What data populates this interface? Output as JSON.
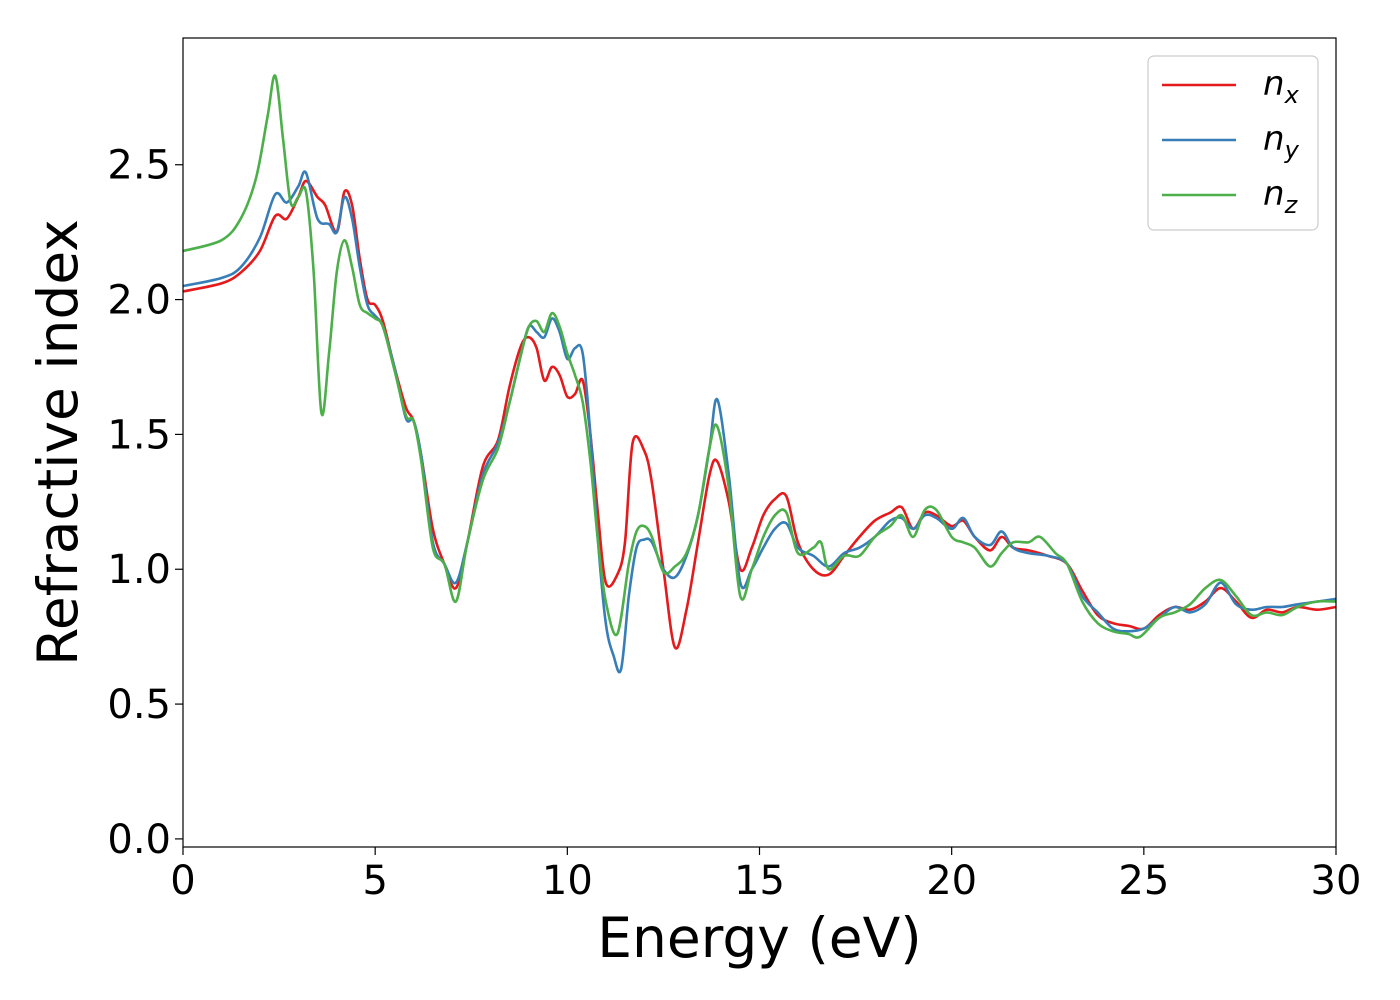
{
  "chart_data": {
    "type": "line",
    "title": "",
    "xlabel": "Energy (eV)",
    "ylabel": "Refractive index",
    "xlim": [
      0,
      30
    ],
    "ylim": [
      -0.03,
      2.97
    ],
    "xticks": [
      0,
      5,
      10,
      15,
      20,
      25,
      30
    ],
    "xtick_labels": [
      "0",
      "5",
      "10",
      "15",
      "20",
      "25",
      "30"
    ],
    "yticks": [
      0.0,
      0.5,
      1.0,
      1.5,
      2.0,
      2.5
    ],
    "ytick_labels": [
      "0.0",
      "0.5",
      "1.0",
      "1.5",
      "2.0",
      "2.5"
    ],
    "grid": false,
    "legend_position": "top-right",
    "series": [
      {
        "name": "n",
        "subscript": "x",
        "color": "#e41a1c",
        "points": [
          [
            0,
            2.03
          ],
          [
            1,
            2.06
          ],
          [
            1.5,
            2.1
          ],
          [
            2,
            2.18
          ],
          [
            2.4,
            2.31
          ],
          [
            2.7,
            2.3
          ],
          [
            3.0,
            2.38
          ],
          [
            3.2,
            2.44
          ],
          [
            3.5,
            2.38
          ],
          [
            3.7,
            2.35
          ],
          [
            4.0,
            2.25
          ],
          [
            4.2,
            2.4
          ],
          [
            4.4,
            2.35
          ],
          [
            4.6,
            2.15
          ],
          [
            4.8,
            2.0
          ],
          [
            5.0,
            1.98
          ],
          [
            5.2,
            1.92
          ],
          [
            5.5,
            1.75
          ],
          [
            5.8,
            1.6
          ],
          [
            6.0,
            1.55
          ],
          [
            6.2,
            1.42
          ],
          [
            6.5,
            1.15
          ],
          [
            6.8,
            1.02
          ],
          [
            7.1,
            0.93
          ],
          [
            7.4,
            1.1
          ],
          [
            7.8,
            1.38
          ],
          [
            8.2,
            1.48
          ],
          [
            8.5,
            1.68
          ],
          [
            8.8,
            1.83
          ],
          [
            9.0,
            1.86
          ],
          [
            9.2,
            1.82
          ],
          [
            9.4,
            1.7
          ],
          [
            9.6,
            1.75
          ],
          [
            9.8,
            1.72
          ],
          [
            10.0,
            1.64
          ],
          [
            10.2,
            1.65
          ],
          [
            10.4,
            1.7
          ],
          [
            10.6,
            1.5
          ],
          [
            10.8,
            1.2
          ],
          [
            11.0,
            0.95
          ],
          [
            11.3,
            0.98
          ],
          [
            11.5,
            1.1
          ],
          [
            11.7,
            1.47
          ],
          [
            12.0,
            1.44
          ],
          [
            12.2,
            1.32
          ],
          [
            12.5,
            1.0
          ],
          [
            12.8,
            0.71
          ],
          [
            13.1,
            0.85
          ],
          [
            13.4,
            1.1
          ],
          [
            13.7,
            1.35
          ],
          [
            13.9,
            1.4
          ],
          [
            14.2,
            1.25
          ],
          [
            14.5,
            1.0
          ],
          [
            14.8,
            1.08
          ],
          [
            15.1,
            1.2
          ],
          [
            15.4,
            1.26
          ],
          [
            15.7,
            1.27
          ],
          [
            16.0,
            1.1
          ],
          [
            16.4,
            1.0
          ],
          [
            16.8,
            0.98
          ],
          [
            17.2,
            1.05
          ],
          [
            17.6,
            1.12
          ],
          [
            18.0,
            1.18
          ],
          [
            18.4,
            1.21
          ],
          [
            18.7,
            1.23
          ],
          [
            19.0,
            1.15
          ],
          [
            19.3,
            1.21
          ],
          [
            19.6,
            1.2
          ],
          [
            20.0,
            1.16
          ],
          [
            20.3,
            1.18
          ],
          [
            20.6,
            1.12
          ],
          [
            21.0,
            1.07
          ],
          [
            21.3,
            1.12
          ],
          [
            21.6,
            1.08
          ],
          [
            22.0,
            1.07
          ],
          [
            22.5,
            1.05
          ],
          [
            23.0,
            1.02
          ],
          [
            23.4,
            0.92
          ],
          [
            23.8,
            0.83
          ],
          [
            24.2,
            0.8
          ],
          [
            24.6,
            0.79
          ],
          [
            25.0,
            0.78
          ],
          [
            25.4,
            0.83
          ],
          [
            25.8,
            0.86
          ],
          [
            26.2,
            0.85
          ],
          [
            26.6,
            0.88
          ],
          [
            27.0,
            0.93
          ],
          [
            27.4,
            0.88
          ],
          [
            27.8,
            0.82
          ],
          [
            28.2,
            0.85
          ],
          [
            28.6,
            0.84
          ],
          [
            29.0,
            0.86
          ],
          [
            29.5,
            0.85
          ],
          [
            30,
            0.86
          ]
        ]
      },
      {
        "name": "n",
        "subscript": "y",
        "color": "#377eb8",
        "points": [
          [
            0,
            2.05
          ],
          [
            1,
            2.08
          ],
          [
            1.5,
            2.12
          ],
          [
            2,
            2.23
          ],
          [
            2.4,
            2.39
          ],
          [
            2.7,
            2.36
          ],
          [
            3.0,
            2.42
          ],
          [
            3.2,
            2.47
          ],
          [
            3.5,
            2.3
          ],
          [
            3.8,
            2.28
          ],
          [
            4.0,
            2.25
          ],
          [
            4.2,
            2.38
          ],
          [
            4.4,
            2.3
          ],
          [
            4.6,
            2.12
          ],
          [
            4.8,
            1.98
          ],
          [
            5.0,
            1.94
          ],
          [
            5.2,
            1.9
          ],
          [
            5.5,
            1.75
          ],
          [
            5.8,
            1.56
          ],
          [
            6.0,
            1.55
          ],
          [
            6.2,
            1.42
          ],
          [
            6.5,
            1.1
          ],
          [
            6.8,
            1.02
          ],
          [
            7.1,
            0.95
          ],
          [
            7.4,
            1.1
          ],
          [
            7.8,
            1.35
          ],
          [
            8.2,
            1.47
          ],
          [
            8.5,
            1.62
          ],
          [
            8.8,
            1.8
          ],
          [
            9.0,
            1.9
          ],
          [
            9.2,
            1.88
          ],
          [
            9.4,
            1.86
          ],
          [
            9.6,
            1.93
          ],
          [
            9.8,
            1.88
          ],
          [
            10.0,
            1.78
          ],
          [
            10.2,
            1.82
          ],
          [
            10.4,
            1.8
          ],
          [
            10.6,
            1.5
          ],
          [
            10.8,
            1.1
          ],
          [
            11.0,
            0.8
          ],
          [
            11.2,
            0.68
          ],
          [
            11.4,
            0.63
          ],
          [
            11.6,
            0.9
          ],
          [
            11.8,
            1.08
          ],
          [
            12.0,
            1.11
          ],
          [
            12.2,
            1.1
          ],
          [
            12.5,
            1.0
          ],
          [
            12.8,
            0.97
          ],
          [
            13.1,
            1.05
          ],
          [
            13.4,
            1.2
          ],
          [
            13.7,
            1.45
          ],
          [
            13.9,
            1.63
          ],
          [
            14.2,
            1.35
          ],
          [
            14.5,
            0.95
          ],
          [
            14.8,
            1.0
          ],
          [
            15.1,
            1.08
          ],
          [
            15.4,
            1.15
          ],
          [
            15.7,
            1.17
          ],
          [
            16.0,
            1.08
          ],
          [
            16.4,
            1.05
          ],
          [
            16.8,
            1.01
          ],
          [
            17.2,
            1.06
          ],
          [
            17.6,
            1.08
          ],
          [
            18.0,
            1.12
          ],
          [
            18.4,
            1.18
          ],
          [
            18.7,
            1.19
          ],
          [
            19.0,
            1.15
          ],
          [
            19.3,
            1.2
          ],
          [
            19.6,
            1.19
          ],
          [
            20.0,
            1.15
          ],
          [
            20.3,
            1.19
          ],
          [
            20.6,
            1.12
          ],
          [
            21.0,
            1.09
          ],
          [
            21.3,
            1.14
          ],
          [
            21.6,
            1.08
          ],
          [
            22.0,
            1.06
          ],
          [
            22.5,
            1.05
          ],
          [
            23.0,
            1.02
          ],
          [
            23.4,
            0.9
          ],
          [
            23.8,
            0.84
          ],
          [
            24.2,
            0.78
          ],
          [
            24.6,
            0.77
          ],
          [
            25.0,
            0.78
          ],
          [
            25.4,
            0.82
          ],
          [
            25.8,
            0.86
          ],
          [
            26.2,
            0.84
          ],
          [
            26.6,
            0.87
          ],
          [
            27.0,
            0.95
          ],
          [
            27.4,
            0.87
          ],
          [
            27.8,
            0.85
          ],
          [
            28.2,
            0.86
          ],
          [
            28.6,
            0.86
          ],
          [
            29.0,
            0.87
          ],
          [
            29.5,
            0.88
          ],
          [
            30,
            0.89
          ]
        ]
      },
      {
        "name": "n",
        "subscript": "z",
        "color": "#4daf4a",
        "points": [
          [
            0,
            2.18
          ],
          [
            1,
            2.22
          ],
          [
            1.5,
            2.3
          ],
          [
            1.9,
            2.45
          ],
          [
            2.2,
            2.68
          ],
          [
            2.4,
            2.83
          ],
          [
            2.6,
            2.6
          ],
          [
            2.8,
            2.36
          ],
          [
            3.0,
            2.38
          ],
          [
            3.2,
            2.4
          ],
          [
            3.4,
            2.1
          ],
          [
            3.6,
            1.58
          ],
          [
            3.8,
            1.8
          ],
          [
            4.0,
            2.1
          ],
          [
            4.2,
            2.22
          ],
          [
            4.4,
            2.12
          ],
          [
            4.6,
            1.98
          ],
          [
            4.8,
            1.95
          ],
          [
            5.0,
            1.93
          ],
          [
            5.2,
            1.9
          ],
          [
            5.5,
            1.74
          ],
          [
            5.8,
            1.57
          ],
          [
            6.0,
            1.55
          ],
          [
            6.2,
            1.4
          ],
          [
            6.5,
            1.08
          ],
          [
            6.8,
            1.02
          ],
          [
            7.1,
            0.88
          ],
          [
            7.4,
            1.1
          ],
          [
            7.8,
            1.33
          ],
          [
            8.2,
            1.45
          ],
          [
            8.5,
            1.62
          ],
          [
            8.8,
            1.8
          ],
          [
            9.0,
            1.9
          ],
          [
            9.2,
            1.92
          ],
          [
            9.4,
            1.88
          ],
          [
            9.6,
            1.95
          ],
          [
            9.8,
            1.9
          ],
          [
            10.0,
            1.8
          ],
          [
            10.2,
            1.72
          ],
          [
            10.4,
            1.62
          ],
          [
            10.6,
            1.4
          ],
          [
            10.8,
            1.1
          ],
          [
            11.0,
            0.88
          ],
          [
            11.3,
            0.76
          ],
          [
            11.6,
            1.02
          ],
          [
            11.8,
            1.14
          ],
          [
            12.0,
            1.16
          ],
          [
            12.2,
            1.12
          ],
          [
            12.5,
            0.99
          ],
          [
            12.8,
            1.01
          ],
          [
            13.1,
            1.06
          ],
          [
            13.4,
            1.2
          ],
          [
            13.7,
            1.45
          ],
          [
            13.9,
            1.53
          ],
          [
            14.2,
            1.3
          ],
          [
            14.5,
            0.9
          ],
          [
            14.8,
            1.0
          ],
          [
            15.1,
            1.12
          ],
          [
            15.4,
            1.2
          ],
          [
            15.7,
            1.21
          ],
          [
            16.0,
            1.06
          ],
          [
            16.4,
            1.08
          ],
          [
            16.6,
            1.1
          ],
          [
            16.8,
            1.0
          ],
          [
            17.2,
            1.05
          ],
          [
            17.6,
            1.05
          ],
          [
            18.0,
            1.12
          ],
          [
            18.4,
            1.16
          ],
          [
            18.7,
            1.2
          ],
          [
            19.0,
            1.12
          ],
          [
            19.3,
            1.22
          ],
          [
            19.6,
            1.22
          ],
          [
            20.0,
            1.12
          ],
          [
            20.3,
            1.1
          ],
          [
            20.6,
            1.08
          ],
          [
            21.0,
            1.01
          ],
          [
            21.3,
            1.06
          ],
          [
            21.6,
            1.1
          ],
          [
            22.0,
            1.1
          ],
          [
            22.3,
            1.12
          ],
          [
            22.7,
            1.06
          ],
          [
            23.0,
            1.02
          ],
          [
            23.4,
            0.88
          ],
          [
            23.8,
            0.8
          ],
          [
            24.2,
            0.77
          ],
          [
            24.6,
            0.76
          ],
          [
            24.9,
            0.75
          ],
          [
            25.4,
            0.82
          ],
          [
            25.8,
            0.84
          ],
          [
            26.2,
            0.87
          ],
          [
            26.6,
            0.93
          ],
          [
            27.0,
            0.96
          ],
          [
            27.4,
            0.9
          ],
          [
            27.8,
            0.83
          ],
          [
            28.2,
            0.84
          ],
          [
            28.6,
            0.83
          ],
          [
            29.0,
            0.86
          ],
          [
            29.5,
            0.88
          ],
          [
            30,
            0.88
          ]
        ]
      }
    ]
  }
}
